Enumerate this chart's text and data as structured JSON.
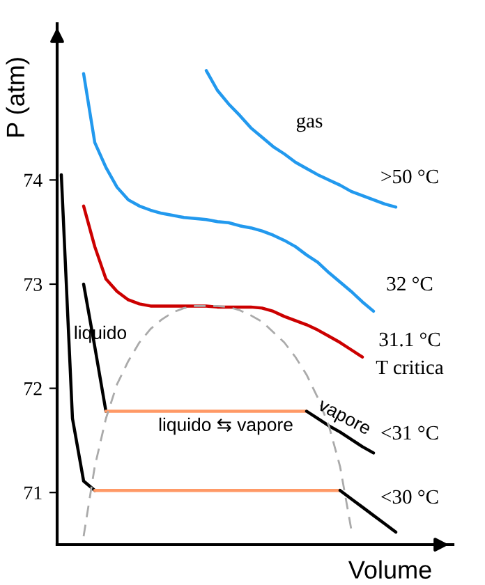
{
  "chart_data": {
    "type": "line",
    "xlabel": "Volume",
    "ylabel": "P (atm)",
    "categories": [
      null,
      null,
      null,
      null,
      null,
      null,
      null,
      null,
      null,
      null,
      null,
      null,
      null,
      null,
      null,
      null,
      null,
      null,
      null,
      null,
      null,
      null,
      null,
      null,
      null,
      null,
      null,
      null,
      null,
      null,
      null
    ],
    "series": [
      {
        "color": "#2299ee",
        "values": [
          null,
          null,
          null,
          null,
          null,
          null,
          null,
          null,
          null,
          null,
          null,
          null,
          null,
          75.05,
          74.86,
          74.73,
          74.62,
          74.5,
          74.41,
          74.32,
          74.25,
          74.17,
          74.11,
          74.05,
          74.0,
          73.95,
          73.89,
          73.85,
          73.81,
          73.77,
          73.74
        ]
      },
      {
        "color": "#2299ee",
        "values": [
          null,
          null,
          75.02,
          74.36,
          74.12,
          73.93,
          73.81,
          73.75,
          73.71,
          73.68,
          73.66,
          73.64,
          73.63,
          73.62,
          73.6,
          73.59,
          73.56,
          73.54,
          73.51,
          73.47,
          73.42,
          73.36,
          73.28,
          73.21,
          73.11,
          73.02,
          72.93,
          72.83,
          72.74,
          null,
          null
        ]
      },
      {
        "color": "#cc0000",
        "values": [
          null,
          null,
          73.75,
          73.36,
          73.05,
          72.93,
          72.85,
          72.81,
          72.79,
          72.79,
          72.79,
          72.79,
          72.79,
          72.79,
          72.78,
          72.78,
          72.78,
          72.78,
          72.77,
          72.74,
          72.69,
          72.65,
          72.61,
          72.56,
          72.5,
          72.44,
          72.37,
          72.3,
          null,
          null,
          null
        ]
      },
      {
        "color": "#000000",
        "values": [
          null,
          null,
          73.0,
          72.4,
          71.78,
          null,
          null,
          null,
          null,
          null,
          null,
          null,
          null,
          null,
          null,
          null,
          null,
          null,
          null,
          null,
          null,
          null,
          null,
          null,
          null,
          null,
          null,
          null,
          null,
          null,
          null
        ]
      },
      {
        "color": "#ff9966",
        "values": [
          null,
          null,
          null,
          null,
          71.78,
          71.78,
          71.78,
          71.78,
          71.78,
          71.78,
          71.78,
          71.78,
          71.78,
          71.78,
          71.78,
          71.78,
          71.78,
          71.78,
          71.78,
          71.78,
          71.78,
          71.78,
          71.78,
          null,
          null,
          null,
          null,
          null,
          null,
          null,
          null
        ]
      },
      {
        "color": "#000000",
        "values": [
          null,
          null,
          null,
          null,
          null,
          null,
          null,
          null,
          null,
          null,
          null,
          null,
          null,
          null,
          null,
          null,
          null,
          null,
          null,
          null,
          null,
          null,
          71.78,
          71.71,
          71.64,
          71.58,
          71.51,
          71.44,
          71.38,
          null,
          null
        ]
      },
      {
        "color": "#000000",
        "values": [
          74.05,
          71.71,
          71.11,
          71.02,
          null,
          null,
          null,
          null,
          null,
          null,
          null,
          null,
          null,
          null,
          null,
          null,
          null,
          null,
          null,
          null,
          null,
          null,
          null,
          null,
          null,
          null,
          null,
          null,
          null,
          null,
          null
        ]
      },
      {
        "color": "#ff9966",
        "values": [
          null,
          null,
          null,
          71.02,
          71.02,
          71.02,
          71.02,
          71.02,
          71.02,
          71.02,
          71.02,
          71.02,
          71.02,
          71.02,
          71.02,
          71.02,
          71.02,
          71.02,
          71.02,
          71.02,
          71.02,
          71.02,
          71.02,
          71.02,
          71.02,
          71.02,
          null,
          null,
          null,
          null,
          null
        ]
      },
      {
        "color": "#000000",
        "values": [
          null,
          null,
          null,
          null,
          null,
          null,
          null,
          null,
          null,
          null,
          null,
          null,
          null,
          null,
          null,
          null,
          null,
          null,
          null,
          null,
          null,
          null,
          null,
          null,
          null,
          71.02,
          70.94,
          70.86,
          70.78,
          70.7,
          70.62
        ]
      },
      {
        "color": "#aaaaaa",
        "line_style": "dashed",
        "values": [
          null,
          null,
          70.58,
          71.25,
          71.71,
          72.04,
          72.26,
          72.44,
          72.57,
          72.66,
          72.73,
          72.77,
          72.79,
          72.79,
          72.79,
          72.78,
          72.75,
          72.7,
          72.64,
          72.54,
          72.44,
          72.3,
          72.13,
          71.91,
          71.64,
          71.25,
          70.65,
          null,
          null,
          null,
          null
        ]
      }
    ],
    "ylim": [
      70.5,
      75.5
    ],
    "yticks": [
      71,
      72,
      73,
      74
    ],
    "tick_labels": "y",
    "grid": false,
    "legend": false,
    "marker": "none",
    "line_style": "solid",
    "annotations": [
      "gas",
      ">50 °C",
      "32 °C",
      "31.1 °C",
      "T critica",
      "liquido",
      "vapore",
      "<31 °C",
      "<30 °C",
      "liquido ⇆ vapore"
    ]
  }
}
